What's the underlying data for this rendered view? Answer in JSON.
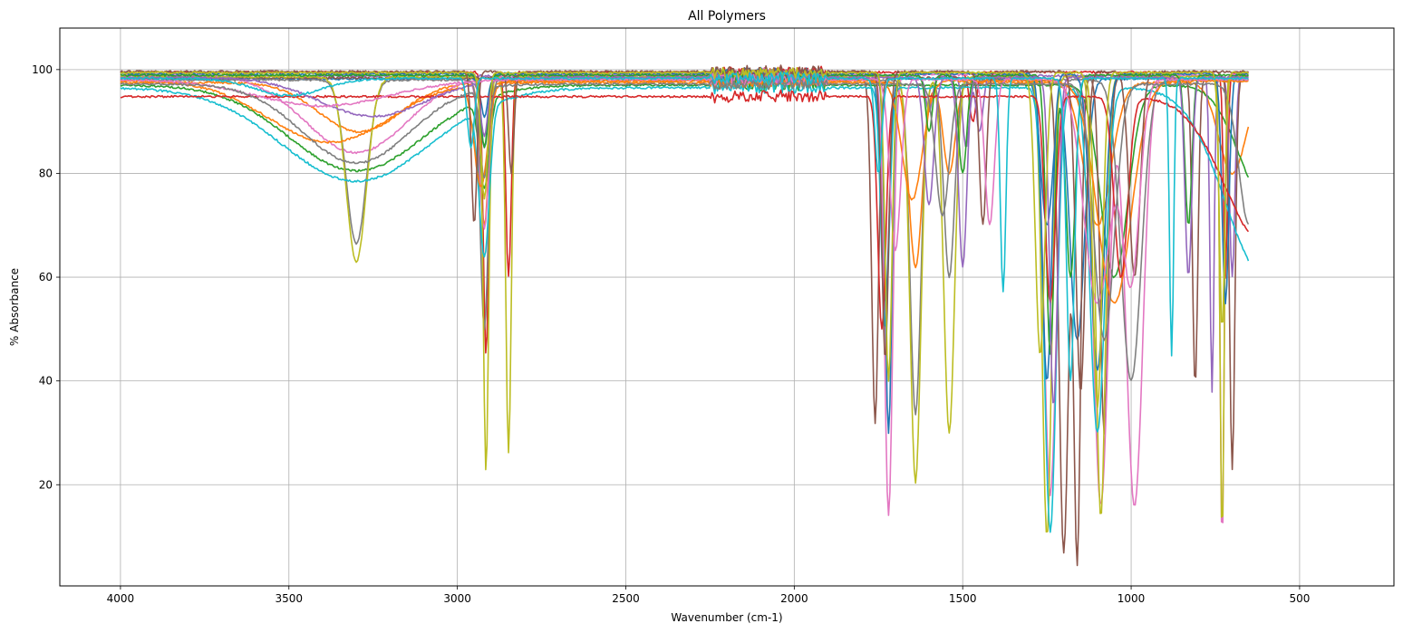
{
  "chart_data": {
    "type": "line",
    "title": "All Polymers",
    "xlabel": "Wavenumber (cm-1)",
    "ylabel": "% Absorbance",
    "xlim": [
      4180,
      220
    ],
    "ylim": [
      0.5,
      108
    ],
    "x_inverted": true,
    "grid": true,
    "legend": "none",
    "x_ticks": [
      4000,
      3500,
      3000,
      2500,
      2000,
      1500,
      1000,
      500
    ],
    "x_tick_labels": [
      "4000",
      "3500",
      "3000",
      "2500",
      "2000",
      "1500",
      "1000",
      "500"
    ],
    "y_ticks": [
      20,
      40,
      60,
      80,
      100
    ],
    "y_tick_labels": [
      "20",
      "40",
      "60",
      "80",
      "100"
    ],
    "colors": [
      "#1f77b4",
      "#ff7f0e",
      "#2ca02c",
      "#d62728",
      "#9467bd",
      "#8c564b",
      "#e377c2",
      "#7f7f7f",
      "#bcbd22",
      "#17becf"
    ],
    "series": [
      {
        "baseline": 98.2,
        "x_end": 650,
        "dips": [
          [
            2920,
            91,
            10
          ],
          [
            1730,
            55,
            12
          ],
          [
            1160,
            48,
            22
          ],
          [
            1250,
            70,
            18
          ]
        ]
      },
      {
        "baseline": 97.5,
        "x_end": 650,
        "dips": [
          [
            3290,
            88,
            120
          ],
          [
            2920,
            70,
            12
          ],
          [
            1640,
            62,
            20
          ],
          [
            1540,
            80,
            18
          ],
          [
            1100,
            70,
            40
          ],
          [
            700,
            80,
            40
          ]
        ]
      },
      {
        "baseline": 97.0,
        "x_end": 650,
        "dips": [
          [
            3300,
            80.5,
            200
          ],
          [
            2920,
            80,
            15
          ],
          [
            1050,
            60,
            40
          ],
          [
            600,
            75,
            80
          ]
        ]
      },
      {
        "baseline": 99.5,
        "x_end": 650,
        "dips": [
          [
            2915,
            45,
            8
          ],
          [
            2848,
            60,
            8
          ],
          [
            1470,
            90,
            10
          ],
          [
            720,
            60,
            6
          ]
        ]
      },
      {
        "baseline": 98.8,
        "x_end": 650,
        "dips": [
          [
            1600,
            92,
            10
          ],
          [
            1490,
            85,
            10
          ],
          [
            1450,
            88,
            10
          ],
          [
            760,
            38,
            6
          ],
          [
            700,
            60,
            8
          ]
        ]
      },
      {
        "baseline": 98.4,
        "x_end": 650,
        "dips": [
          [
            1760,
            32,
            10
          ],
          [
            1200,
            7,
            14
          ],
          [
            1160,
            6,
            10
          ],
          [
            1080,
            30,
            12
          ],
          [
            810,
            39,
            8
          ],
          [
            700,
            23,
            8
          ]
        ]
      },
      {
        "baseline": 99.0,
        "x_end": 650,
        "dips": [
          [
            3300,
            84,
            150
          ],
          [
            2920,
            70,
            14
          ],
          [
            1720,
            14,
            12
          ],
          [
            1240,
            18,
            18
          ],
          [
            1090,
            16,
            22
          ],
          [
            990,
            16,
            25
          ],
          [
            730,
            8,
            6
          ]
        ]
      },
      {
        "baseline": 98.0,
        "x_end": 650,
        "dips": [
          [
            3300,
            66.5,
            30
          ],
          [
            2920,
            50,
            12
          ],
          [
            1640,
            33.5,
            16
          ],
          [
            1540,
            60,
            16
          ],
          [
            1000,
            40,
            30
          ]
        ]
      },
      {
        "baseline": 98.6,
        "x_end": 650,
        "dips": [
          [
            3300,
            63,
            30
          ],
          [
            2915,
            22.5,
            8
          ],
          [
            2848,
            26,
            8
          ],
          [
            1640,
            20.5,
            16
          ],
          [
            1540,
            30,
            16
          ],
          [
            1250,
            10,
            14
          ],
          [
            1090,
            13.5,
            14
          ],
          [
            730,
            9,
            6
          ]
        ]
      },
      {
        "baseline": 96.5,
        "x_end": 650,
        "dips": [
          [
            3300,
            78.5,
            220
          ],
          [
            2920,
            68,
            15
          ],
          [
            1730,
            50,
            12
          ],
          [
            1240,
            11,
            18
          ],
          [
            1100,
            30,
            22
          ],
          [
            600,
            60,
            120
          ]
        ]
      },
      {
        "baseline": 99.2,
        "x_end": 650,
        "dips": [
          [
            2920,
            85,
            12
          ],
          [
            1720,
            30,
            10
          ],
          [
            1250,
            40,
            14
          ],
          [
            1100,
            42,
            20
          ],
          [
            720,
            55,
            10
          ]
        ]
      },
      {
        "baseline": 97.8,
        "x_end": 650,
        "dips": [
          [
            3380,
            86,
            180
          ],
          [
            2930,
            78,
            20
          ],
          [
            1650,
            75,
            30
          ],
          [
            1050,
            55,
            50
          ]
        ]
      },
      {
        "baseline": 98.9,
        "x_end": 650,
        "dips": [
          [
            2920,
            85,
            10
          ],
          [
            1600,
            88,
            10
          ],
          [
            1500,
            80,
            12
          ],
          [
            1240,
            45,
            12
          ],
          [
            1180,
            60,
            14
          ],
          [
            830,
            70,
            10
          ]
        ]
      },
      {
        "baseline": 94.8,
        "x_end": 650,
        "dips": [
          [
            1740,
            50,
            12
          ],
          [
            1240,
            55,
            15
          ],
          [
            1030,
            60,
            20
          ],
          [
            600,
            66,
            120
          ]
        ]
      },
      {
        "baseline": 98.5,
        "x_end": 650,
        "dips": [
          [
            3250,
            91,
            160
          ],
          [
            2920,
            88,
            10
          ],
          [
            1600,
            74,
            14
          ],
          [
            1500,
            62,
            12
          ],
          [
            1230,
            35,
            12
          ],
          [
            830,
            60,
            10
          ]
        ]
      },
      {
        "baseline": 99.6,
        "x_end": 650,
        "dips": [
          [
            2950,
            70,
            8
          ],
          [
            2840,
            80,
            8
          ],
          [
            1730,
            44,
            10
          ],
          [
            1440,
            70,
            10
          ],
          [
            1150,
            38,
            14
          ],
          [
            990,
            60,
            16
          ]
        ]
      },
      {
        "baseline": 98.1,
        "x_end": 650,
        "dips": [
          [
            3400,
            93,
            200
          ],
          [
            1700,
            65,
            16
          ],
          [
            1420,
            70,
            14
          ],
          [
            1100,
            55,
            40
          ],
          [
            1000,
            60,
            25
          ]
        ]
      },
      {
        "baseline": 97.2,
        "x_end": 650,
        "dips": [
          [
            3300,
            82,
            160
          ],
          [
            2920,
            80,
            12
          ],
          [
            1560,
            72,
            20
          ],
          [
            1080,
            48,
            30
          ],
          [
            650,
            70,
            30
          ]
        ]
      },
      {
        "baseline": 99.4,
        "x_end": 650,
        "dips": [
          [
            2920,
            75,
            10
          ],
          [
            1720,
            40,
            10
          ],
          [
            1270,
            45,
            14
          ],
          [
            1100,
            35,
            14
          ],
          [
            730,
            50,
            8
          ]
        ]
      },
      {
        "baseline": 98.3,
        "x_end": 650,
        "dips": [
          [
            3500,
            95,
            100
          ],
          [
            2960,
            85,
            10
          ],
          [
            1750,
            80,
            10
          ],
          [
            1380,
            57,
            8
          ],
          [
            1180,
            40,
            12
          ],
          [
            880,
            45,
            6
          ]
        ]
      }
    ]
  }
}
